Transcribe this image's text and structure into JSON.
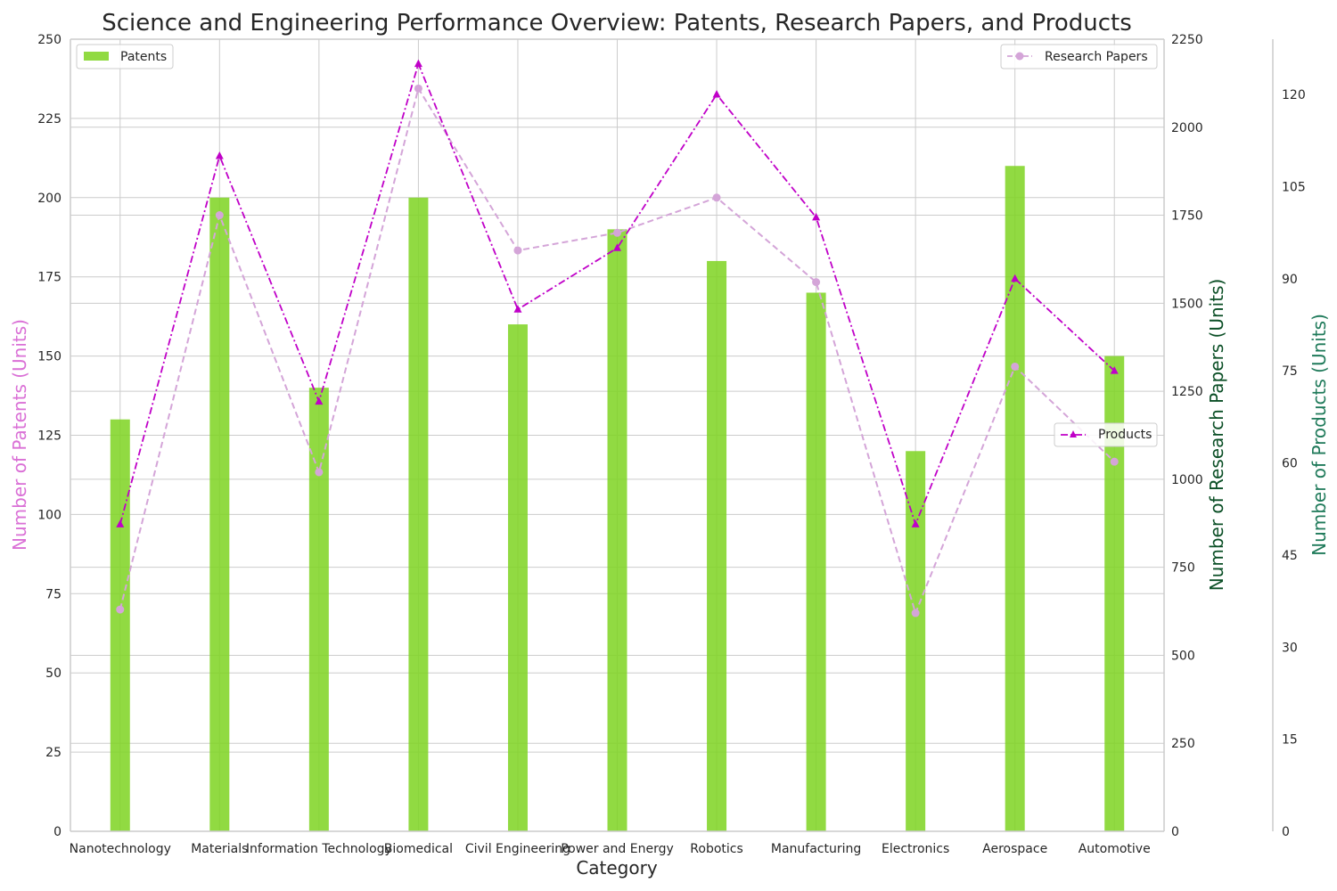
{
  "chart_data": {
    "type": "bar",
    "title": "Science and Engineering Performance Overview: Patents, Research Papers, and Products",
    "xlabel": "Category",
    "categories": [
      "Nanotechnology",
      "Materials",
      "Information Technology",
      "Biomedical",
      "Civil Engineering",
      "Power and Energy",
      "Robotics",
      "Manufacturing",
      "Electronics",
      "Aerospace",
      "Automotive"
    ],
    "series": [
      {
        "name": "Patents",
        "type": "bar",
        "axis": "left",
        "color": "#7ED321",
        "values": [
          130,
          200,
          140,
          200,
          160,
          190,
          180,
          170,
          120,
          210,
          150
        ]
      },
      {
        "name": "Research Papers",
        "type": "line",
        "axis": "right1",
        "color": "#D4A5D8",
        "style": "dashed",
        "marker": "circle",
        "values": [
          630,
          1750,
          1020,
          2110,
          1650,
          1700,
          1800,
          1560,
          620,
          1320,
          1050
        ]
      },
      {
        "name": "Products",
        "type": "line",
        "axis": "right2",
        "color": "#C000C8",
        "style": "dash-dot",
        "marker": "triangle",
        "values": [
          50,
          110,
          70,
          125,
          85,
          95,
          120,
          100,
          50,
          90,
          75
        ]
      }
    ],
    "axes": {
      "left": {
        "label": "Number of Patents (Units)",
        "color": "#DA70D6",
        "range": [
          0,
          250
        ],
        "ticks": [
          0,
          25,
          50,
          75,
          100,
          125,
          150,
          175,
          200,
          225,
          250
        ]
      },
      "right1": {
        "label": "Number of Research Papers (Units)",
        "color": "#0B4F26",
        "range": [
          0,
          2250
        ],
        "ticks": [
          0,
          250,
          500,
          750,
          1000,
          1250,
          1500,
          1750,
          2000,
          2250
        ]
      },
      "right2": {
        "label": "Number of Products (Units)",
        "color": "#1F7A5A",
        "range": [
          0,
          129
        ],
        "ticks": [
          0,
          15,
          30,
          45,
          60,
          75,
          90,
          105,
          120
        ]
      }
    },
    "grid": true,
    "legends": [
      {
        "series": "Patents",
        "placement": "top-left"
      },
      {
        "series": "Research Papers",
        "placement": "top-right"
      },
      {
        "series": "Products",
        "placement": "center-right"
      }
    ]
  }
}
